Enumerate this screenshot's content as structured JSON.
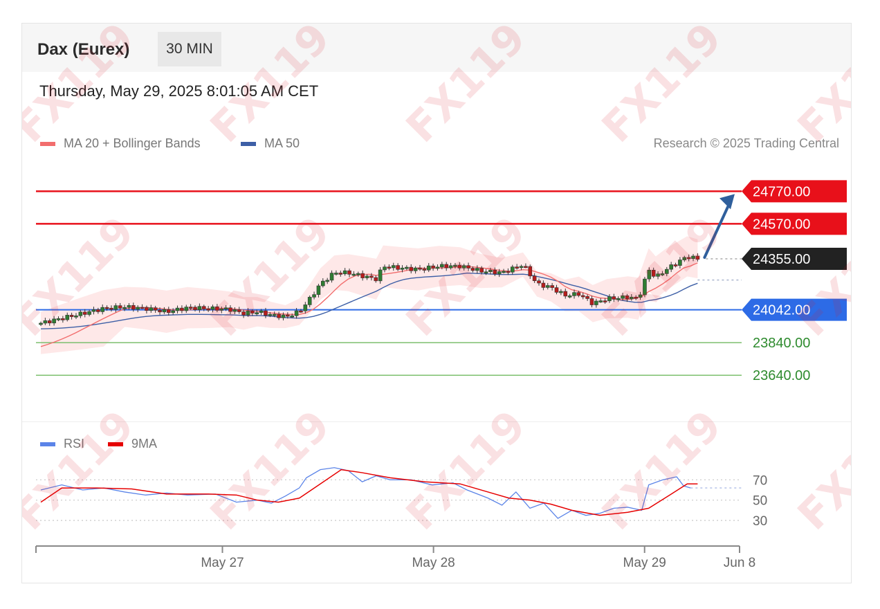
{
  "header": {
    "title": "Dax (Eurex)",
    "timeframe": "30 MIN"
  },
  "timestamp": "Thursday, May 29, 2025 8:01:05 AM CET",
  "copyright": "Research © 2025 Trading Central",
  "watermark": "FX119",
  "colors": {
    "resistance": "#e8101a",
    "support": "#2d6be6",
    "target": "#7cbf6e",
    "price_tag": "#222222",
    "ma20": "#f26d6d",
    "ma50": "#3d5fa6",
    "bollinger_fill": "#fde0e0",
    "rsi": "#5b84e8",
    "rsi_ma": "#e60000",
    "arrow": "#2f5f9c"
  },
  "chart_data": {
    "type": "candlestick",
    "instrument": "Dax (Eurex)",
    "interval": "30 MIN",
    "legend": [
      {
        "name": "MA 20 + Bollinger Bands",
        "color": "#f26d6d"
      },
      {
        "name": "MA 50",
        "color": "#3d5fa6"
      }
    ],
    "levels": [
      {
        "value": 24770.0,
        "label": "24770.00",
        "kind": "resistance"
      },
      {
        "value": 24570.0,
        "label": "24570.00",
        "kind": "resistance"
      },
      {
        "value": 24355.0,
        "label": "24355.00",
        "kind": "current"
      },
      {
        "value": 24042.0,
        "label": "24042.00",
        "kind": "support"
      },
      {
        "value": 23840.0,
        "label": "23840.00",
        "kind": "target"
      },
      {
        "value": 23640.0,
        "label": "23640.00",
        "kind": "target"
      }
    ],
    "ma50_last": 24225,
    "ylim": [
      23420,
      24950
    ],
    "x_ticks": [
      {
        "label": "May 27",
        "t": 0.265
      },
      {
        "label": "May 28",
        "t": 0.565
      },
      {
        "label": "May 29",
        "t": 0.865
      },
      {
        "label": "Jun 8",
        "t": 1.0
      }
    ],
    "close_path": [
      [
        0.0,
        23960
      ],
      [
        0.03,
        23990
      ],
      [
        0.06,
        24020
      ],
      [
        0.09,
        24050
      ],
      [
        0.12,
        24060
      ],
      [
        0.15,
        24050
      ],
      [
        0.18,
        24030
      ],
      [
        0.21,
        24055
      ],
      [
        0.24,
        24050
      ],
      [
        0.27,
        24045
      ],
      [
        0.29,
        24020
      ],
      [
        0.31,
        24030
      ],
      [
        0.33,
        24010
      ],
      [
        0.35,
        24000
      ],
      [
        0.37,
        24030
      ],
      [
        0.385,
        24110
      ],
      [
        0.4,
        24200
      ],
      [
        0.42,
        24270
      ],
      [
        0.44,
        24270
      ],
      [
        0.46,
        24250
      ],
      [
        0.48,
        24230
      ],
      [
        0.49,
        24310
      ],
      [
        0.51,
        24300
      ],
      [
        0.54,
        24290
      ],
      [
        0.57,
        24310
      ],
      [
        0.6,
        24310
      ],
      [
        0.63,
        24280
      ],
      [
        0.66,
        24270
      ],
      [
        0.69,
        24320
      ],
      [
        0.71,
        24200
      ],
      [
        0.73,
        24180
      ],
      [
        0.75,
        24130
      ],
      [
        0.77,
        24140
      ],
      [
        0.79,
        24080
      ],
      [
        0.81,
        24110
      ],
      [
        0.84,
        24120
      ],
      [
        0.855,
        24110
      ],
      [
        0.87,
        24290
      ],
      [
        0.88,
        24240
      ],
      [
        0.895,
        24290
      ],
      [
        0.91,
        24330
      ],
      [
        0.925,
        24370
      ],
      [
        0.94,
        24355
      ]
    ],
    "rsi": {
      "legend": [
        {
          "name": "RSI",
          "color": "#5b84e8"
        },
        {
          "name": "9MA",
          "color": "#e60000"
        }
      ],
      "levels": [
        70,
        50,
        30
      ],
      "level_labels": [
        "70",
        "50",
        "30"
      ],
      "ylim": [
        15,
        90
      ],
      "rsi_path": [
        [
          0.0,
          60
        ],
        [
          0.03,
          65
        ],
        [
          0.06,
          60
        ],
        [
          0.09,
          62
        ],
        [
          0.12,
          58
        ],
        [
          0.15,
          55
        ],
        [
          0.18,
          57
        ],
        [
          0.21,
          55
        ],
        [
          0.25,
          56
        ],
        [
          0.28,
          48
        ],
        [
          0.31,
          50
        ],
        [
          0.33,
          47
        ],
        [
          0.35,
          54
        ],
        [
          0.37,
          62
        ],
        [
          0.38,
          72
        ],
        [
          0.4,
          80
        ],
        [
          0.42,
          82
        ],
        [
          0.44,
          79
        ],
        [
          0.46,
          68
        ],
        [
          0.48,
          74
        ],
        [
          0.5,
          70
        ],
        [
          0.53,
          70
        ],
        [
          0.56,
          65
        ],
        [
          0.59,
          67
        ],
        [
          0.61,
          60
        ],
        [
          0.64,
          52
        ],
        [
          0.66,
          45
        ],
        [
          0.68,
          58
        ],
        [
          0.7,
          42
        ],
        [
          0.72,
          47
        ],
        [
          0.74,
          32
        ],
        [
          0.76,
          40
        ],
        [
          0.78,
          35
        ],
        [
          0.8,
          37
        ],
        [
          0.82,
          42
        ],
        [
          0.84,
          43
        ],
        [
          0.86,
          40
        ],
        [
          0.87,
          65
        ],
        [
          0.89,
          70
        ],
        [
          0.91,
          73
        ],
        [
          0.92,
          64
        ],
        [
          0.93,
          62
        ]
      ],
      "ma_path": [
        [
          0.0,
          48
        ],
        [
          0.03,
          62
        ],
        [
          0.08,
          62
        ],
        [
          0.13,
          61
        ],
        [
          0.18,
          56
        ],
        [
          0.24,
          56
        ],
        [
          0.28,
          55
        ],
        [
          0.31,
          50
        ],
        [
          0.34,
          48
        ],
        [
          0.37,
          52
        ],
        [
          0.4,
          66
        ],
        [
          0.43,
          80
        ],
        [
          0.46,
          77
        ],
        [
          0.5,
          72
        ],
        [
          0.55,
          68
        ],
        [
          0.6,
          66
        ],
        [
          0.64,
          58
        ],
        [
          0.67,
          52
        ],
        [
          0.7,
          50
        ],
        [
          0.73,
          46
        ],
        [
          0.76,
          40
        ],
        [
          0.8,
          35
        ],
        [
          0.84,
          38
        ],
        [
          0.87,
          42
        ],
        [
          0.9,
          55
        ],
        [
          0.925,
          66
        ],
        [
          0.94,
          66
        ]
      ]
    }
  }
}
